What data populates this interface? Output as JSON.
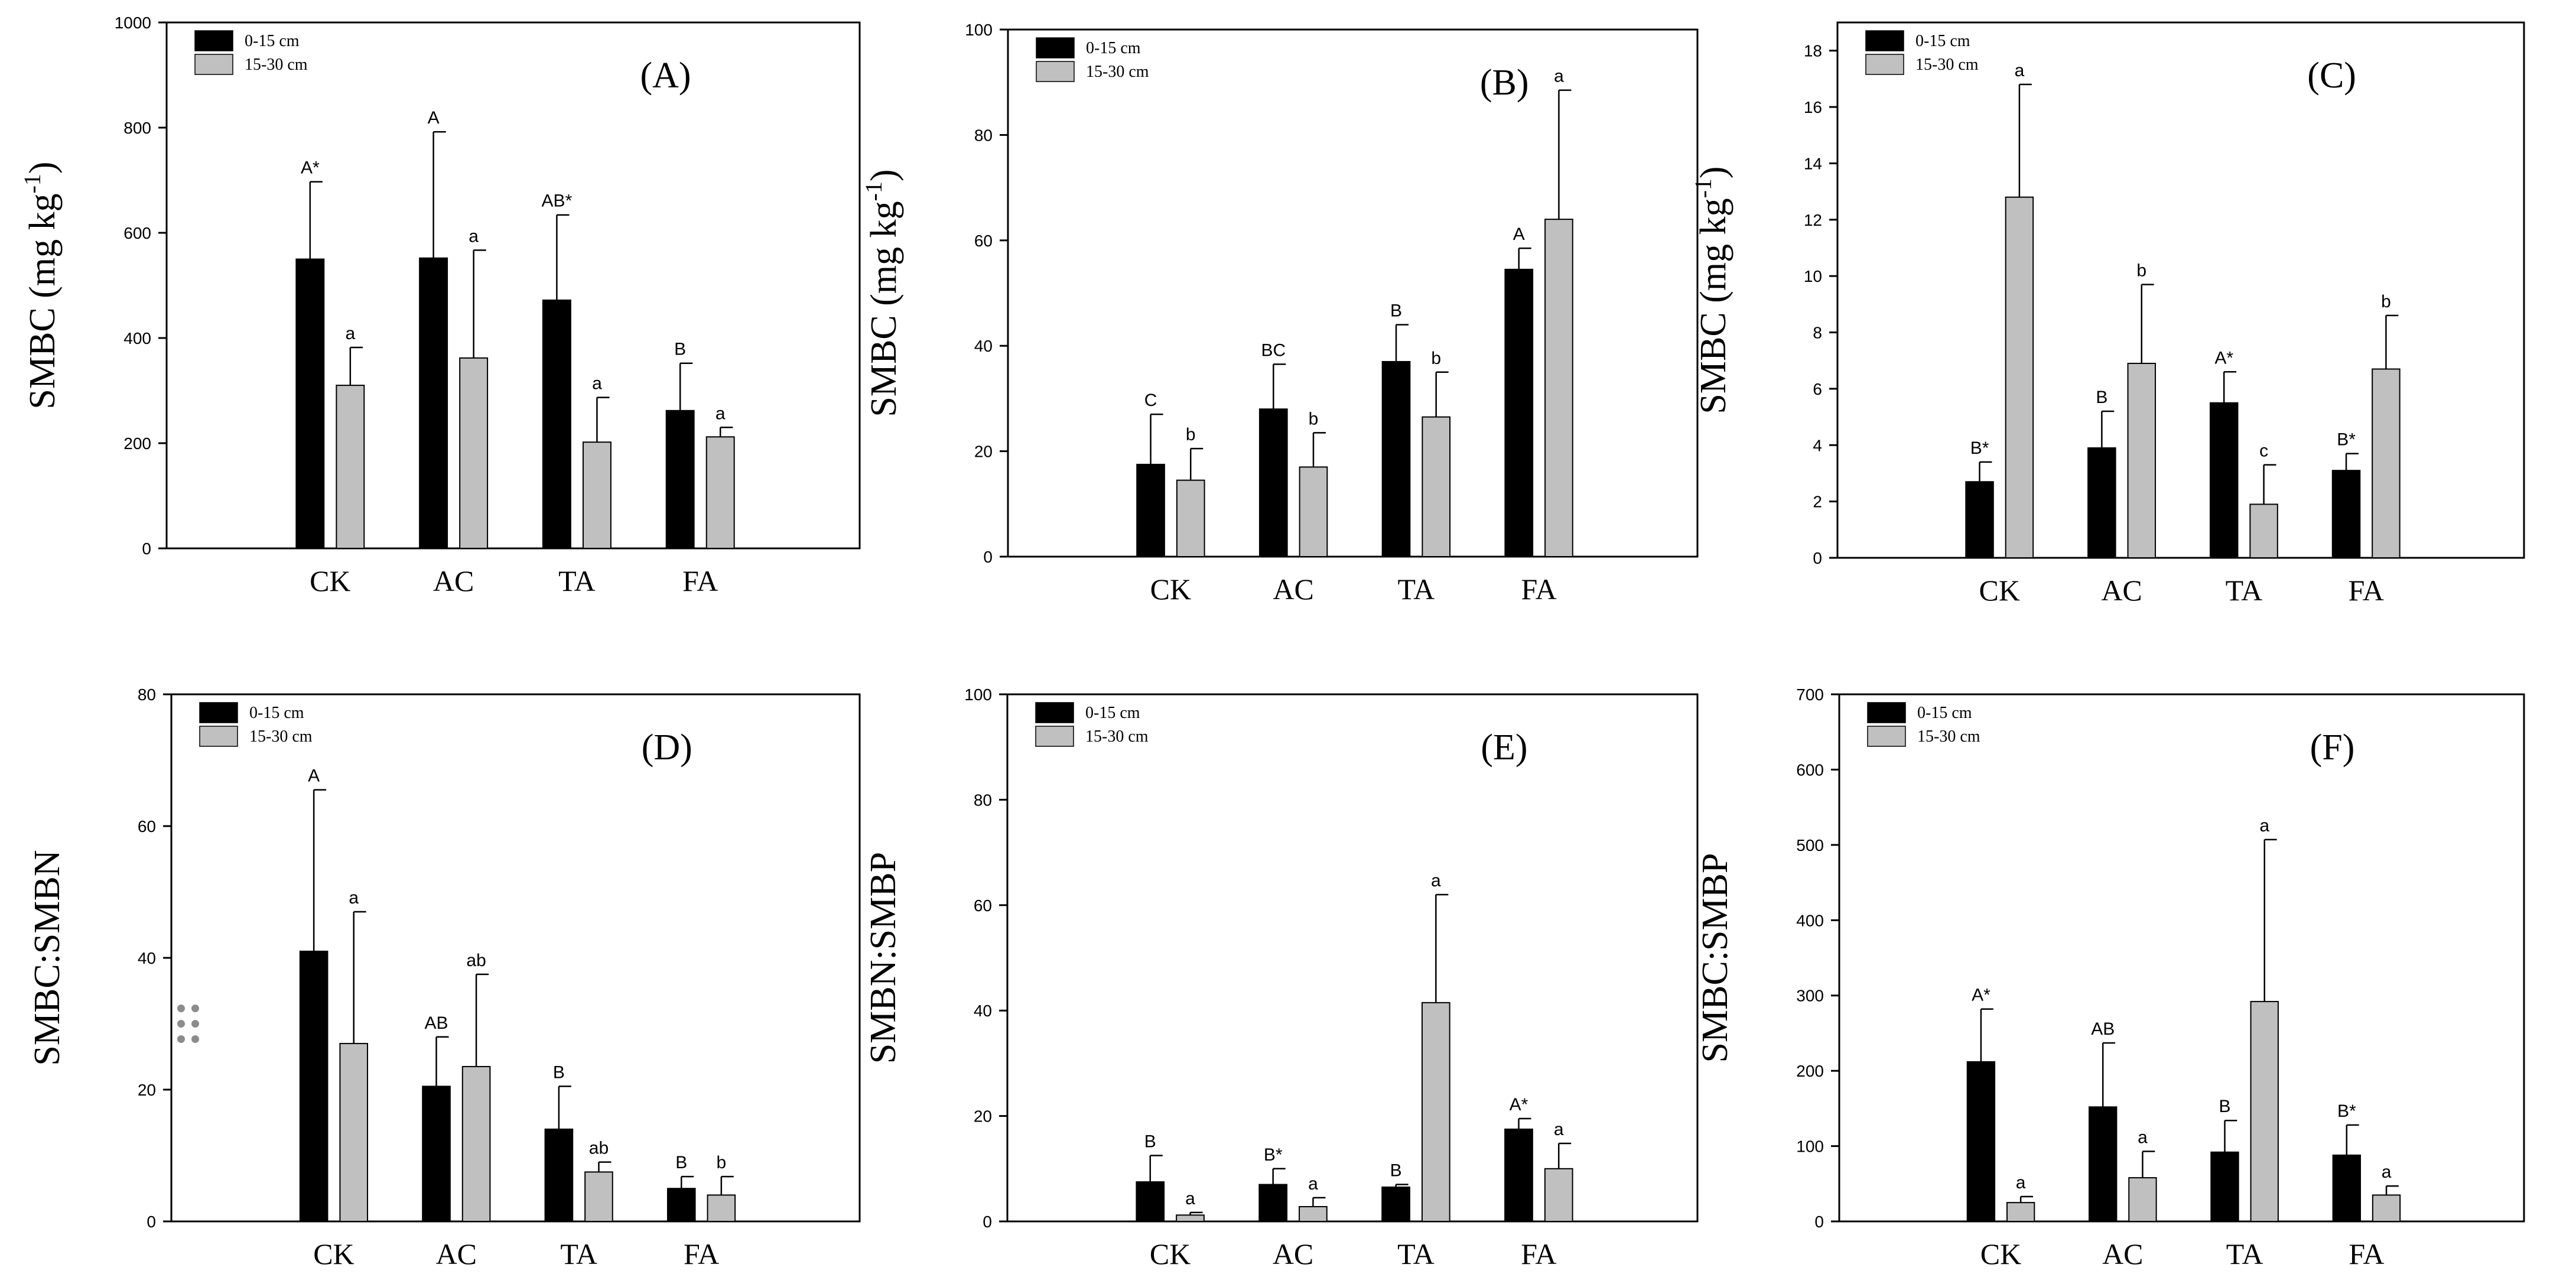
{
  "colors": {
    "depth1": "#000000",
    "depth2": "#c0c0c0",
    "axis": "#000000"
  },
  "drag_handle": "drag-handle-icon",
  "chart_data": [
    {
      "id": "A",
      "type": "bar",
      "title": "(A)",
      "ylabel": "SMBC (mg kg-1)",
      "ylabel_main": "SMBC (mg kg",
      "ylabel_sup": "-1",
      "ylabel_end": ")",
      "ylim": [
        0,
        1000
      ],
      "yticks": [
        0,
        200,
        400,
        600,
        800,
        1000
      ],
      "categories": [
        "CK",
        "AC",
        "TA",
        "FA"
      ],
      "series": [
        {
          "name": "0-15 cm",
          "values": [
            550,
            552,
            472,
            262
          ],
          "errors": [
            147,
            240,
            162,
            90
          ],
          "labels": [
            "A*",
            "A",
            "AB*",
            "B"
          ]
        },
        {
          "name": "15-30 cm",
          "values": [
            310,
            362,
            202,
            212
          ],
          "errors": [
            72,
            205,
            85,
            18
          ],
          "labels": [
            "a",
            "a",
            "a",
            "a"
          ]
        }
      ]
    },
    {
      "id": "B",
      "type": "bar",
      "title": "(B)",
      "ylabel": "SMBC (mg kg-1)",
      "ylabel_main": "SMBC (mg kg",
      "ylabel_sup": "-1",
      "ylabel_end": ")",
      "ylim": [
        0,
        100
      ],
      "yticks": [
        0,
        20,
        40,
        60,
        80,
        100
      ],
      "categories": [
        "CK",
        "AC",
        "TA",
        "FA"
      ],
      "series": [
        {
          "name": "0-15 cm",
          "values": [
            17.5,
            28,
            37,
            54.5
          ],
          "errors": [
            9.5,
            8.5,
            7,
            4
          ],
          "labels": [
            "C",
            "BC",
            "B",
            "A"
          ]
        },
        {
          "name": "15-30 cm",
          "values": [
            14.5,
            17,
            26.5,
            64
          ],
          "errors": [
            6,
            6.5,
            8.5,
            24.5
          ],
          "labels": [
            "b",
            "b",
            "b",
            "a"
          ]
        }
      ]
    },
    {
      "id": "C",
      "type": "bar",
      "title": "(C)",
      "ylabel": "SMBC (mg kg-1)",
      "ylabel_main": "SMBC (mg kg",
      "ylabel_sup": "-1",
      "ylabel_end": ")",
      "ylim": [
        0,
        19
      ],
      "yticks": [
        0,
        2,
        4,
        6,
        8,
        10,
        12,
        14,
        16,
        18
      ],
      "categories": [
        "CK",
        "AC",
        "TA",
        "FA"
      ],
      "series": [
        {
          "name": "0-15 cm",
          "values": [
            2.7,
            3.9,
            5.5,
            3.1
          ],
          "errors": [
            0.7,
            1.3,
            1.1,
            0.6
          ],
          "labels": [
            "B*",
            "B",
            "A*",
            "B*"
          ]
        },
        {
          "name": "15-30 cm",
          "values": [
            12.8,
            6.9,
            1.9,
            6.7
          ],
          "errors": [
            4.0,
            2.8,
            1.4,
            1.9
          ],
          "labels": [
            "a",
            "b",
            "c",
            "b"
          ]
        }
      ]
    },
    {
      "id": "D",
      "type": "bar",
      "title": "(D)",
      "ylabel": "SMBC:SMBN",
      "ylabel_main": "SMBC:SMBN",
      "ylabel_sup": "",
      "ylabel_end": "",
      "ylim": [
        0,
        80
      ],
      "yticks": [
        0,
        20,
        40,
        60,
        80
      ],
      "categories": [
        "CK",
        "AC",
        "TA",
        "FA"
      ],
      "series": [
        {
          "name": "0-15 cm",
          "values": [
            41,
            20.5,
            14,
            5
          ],
          "errors": [
            24.5,
            7.5,
            6.5,
            1.8
          ],
          "labels": [
            "A",
            "AB",
            "B",
            "B"
          ]
        },
        {
          "name": "15-30 cm",
          "values": [
            27,
            23.5,
            7.5,
            4
          ],
          "errors": [
            20,
            14,
            1.5,
            2.8
          ],
          "labels": [
            "a",
            "ab",
            "ab",
            "b"
          ]
        }
      ]
    },
    {
      "id": "E",
      "type": "bar",
      "title": "(E)",
      "ylabel": "SMBN:SMBP",
      "ylabel_main": "SMBN:SMBP",
      "ylabel_sup": "",
      "ylabel_end": "",
      "ylim": [
        0,
        100
      ],
      "yticks": [
        0,
        20,
        40,
        60,
        80,
        100
      ],
      "categories": [
        "CK",
        "AC",
        "TA",
        "FA"
      ],
      "series": [
        {
          "name": "0-15 cm",
          "values": [
            7.5,
            7,
            6.5,
            17.5
          ],
          "errors": [
            5,
            3,
            0.5,
            2
          ],
          "labels": [
            "B",
            "B*",
            "B",
            "A*"
          ]
        },
        {
          "name": "15-30 cm",
          "values": [
            1.2,
            2.8,
            41.5,
            10
          ],
          "errors": [
            0.5,
            1.7,
            20.5,
            4.8
          ],
          "labels": [
            "a",
            "a",
            "a",
            "a"
          ]
        }
      ]
    },
    {
      "id": "F",
      "type": "bar",
      "title": "(F)",
      "ylabel": "SMBC:SMBP",
      "ylabel_main": "SMBC:SMBP",
      "ylabel_sup": "",
      "ylabel_end": "",
      "ylim": [
        0,
        700
      ],
      "yticks": [
        0,
        100,
        200,
        300,
        400,
        500,
        600,
        700
      ],
      "categories": [
        "CK",
        "AC",
        "TA",
        "FA"
      ],
      "series": [
        {
          "name": "0-15 cm",
          "values": [
            212,
            152,
            92,
            88
          ],
          "errors": [
            70,
            85,
            42,
            40
          ],
          "labels": [
            "A*",
            "AB",
            "B",
            "B*"
          ]
        },
        {
          "name": "15-30 cm",
          "values": [
            25,
            58,
            292,
            35
          ],
          "errors": [
            8,
            35,
            215,
            12
          ],
          "labels": [
            "a",
            "a",
            "a",
            "a"
          ]
        }
      ]
    }
  ]
}
